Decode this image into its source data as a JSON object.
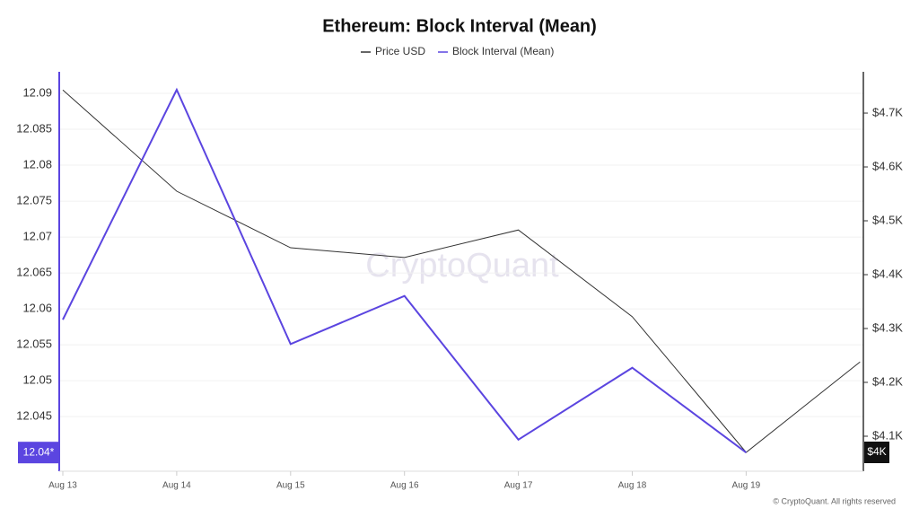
{
  "chart_data": {
    "type": "line",
    "title": "Ethereum: Block Interval (Mean)",
    "categories": [
      "Aug 13",
      "Aug 14",
      "Aug 15",
      "Aug 16",
      "Aug 17",
      "Aug 18",
      "Aug 19",
      null
    ],
    "series": [
      {
        "name": "Price USD",
        "color": "#333333",
        "axis": "y2",
        "values": [
          4743,
          4555,
          4450,
          4432,
          4483,
          4322,
          4070,
          4238
        ]
      },
      {
        "name": "Block Interval (Mean)",
        "color": "#5b45e0",
        "values": [
          12.0585,
          12.0905,
          12.0551,
          12.0618,
          12.0418,
          12.0518,
          12.04,
          null
        ]
      }
    ],
    "ylim": [
      12.0374,
      12.093
    ],
    "yticks": [
      12.045,
      12.05,
      12.055,
      12.06,
      12.065,
      12.07,
      12.075,
      12.08,
      12.085,
      12.09
    ],
    "y2lim": [
      4035,
      4776.7
    ],
    "y2ticks": [
      {
        "value": 4100,
        "label": "$4.1K"
      },
      {
        "value": 4200,
        "label": "$4.2K"
      },
      {
        "value": 4300,
        "label": "$4.3K"
      },
      {
        "value": 4400,
        "label": "$4.4K"
      },
      {
        "value": 4500,
        "label": "$4.5K"
      },
      {
        "value": 4600,
        "label": "$4.6K"
      },
      {
        "value": 4700,
        "label": "$4.7K"
      }
    ],
    "left_badge": {
      "value": 12.04,
      "label": "12.04*"
    },
    "right_badge": {
      "value": 4070,
      "label": "$4K"
    },
    "grid": true,
    "watermark": "CryptoQuant",
    "copyright": "© CryptoQuant. All rights reserved"
  }
}
